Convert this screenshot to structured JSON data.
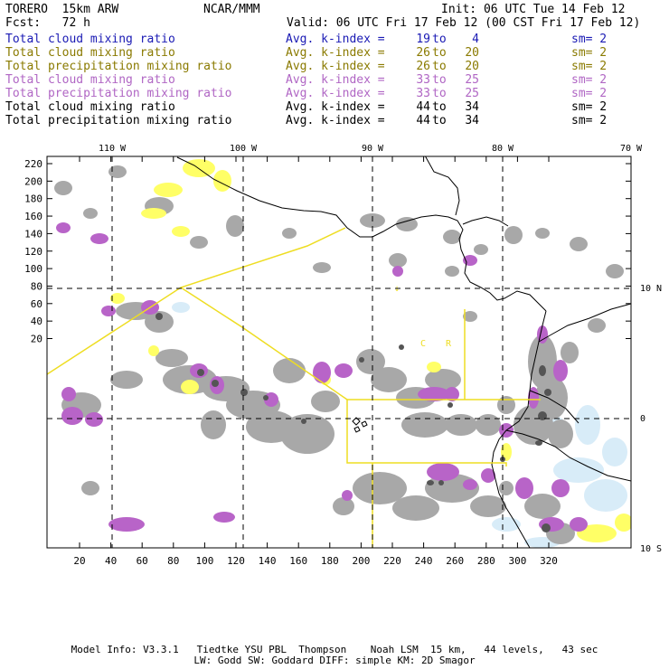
{
  "header": {
    "model": "TORERO  15km ARW",
    "org": "NCAR/MMM",
    "init": "Init: 06 UTC Tue 14 Feb 12",
    "fcst": "Fcst:   72 h",
    "valid": "Valid: 06 UTC Fri 17 Feb 12 (00 CST Fri 17 Feb 12)"
  },
  "legend": [
    {
      "name": "Total cloud mixing ratio",
      "avg": "Avg. k-index =",
      "from": "19",
      "to_word": "to",
      "to": "4",
      "sm": "sm= 2",
      "color": "#1a1ab4"
    },
    {
      "name": "Total cloud mixing ratio",
      "avg": "Avg. k-index =",
      "from": "26",
      "to_word": "to",
      "to": "20",
      "sm": "sm= 2",
      "color": "#8a7a00"
    },
    {
      "name": "Total precipitation mixing ratio",
      "avg": "Avg. k-index =",
      "from": "26",
      "to_word": "to",
      "to": "20",
      "sm": "sm= 2",
      "color": "#8a7a00"
    },
    {
      "name": "Total cloud mixing ratio",
      "avg": "Avg. k-index =",
      "from": "33",
      "to_word": "to",
      "to": "25",
      "sm": "sm= 2",
      "color": "#b066c4"
    },
    {
      "name": "Total precipitation mixing ratio",
      "avg": "Avg. k-index =",
      "from": "33",
      "to_word": "to",
      "to": "25",
      "sm": "sm= 2",
      "color": "#b066c4"
    },
    {
      "name": "Total cloud mixing ratio",
      "avg": "Avg. k-index =",
      "from": "44",
      "to_word": "to",
      "to": "34",
      "sm": "sm= 2",
      "color": "#000000"
    },
    {
      "name": "Total precipitation mixing ratio",
      "avg": "Avg. k-index =",
      "from": "44",
      "to_word": "to",
      "to": "34",
      "sm": "sm= 2",
      "color": "#000000"
    }
  ],
  "map": {
    "lon_labels": [
      "110 W",
      "100 W",
      "90 W",
      "80 W",
      "70 W"
    ],
    "lat_labels": [
      "10 N",
      "0",
      "10 S"
    ],
    "x_ticks": [
      "20",
      "40",
      "60",
      "80",
      "100",
      "120",
      "140",
      "160",
      "180",
      "200",
      "220",
      "240",
      "260",
      "280",
      "300",
      "320"
    ],
    "y_ticks": [
      "220",
      "200",
      "180",
      "160",
      "140",
      "120",
      "100",
      "80",
      "60",
      "40",
      "20"
    ],
    "region_labels": [
      "C",
      "R"
    ],
    "colors": {
      "gray": "#a8a8a8",
      "purple": "#b864c8",
      "yellow": "#ffff66",
      "lightblue": "#d8ecf8",
      "boundary": "#eedd22"
    }
  },
  "footer": {
    "line1": "Model Info: V3.3.1   Tiedtke YSU PBL  Thompson    Noah LSM  15 km,   44 levels,   43 sec",
    "line2": "LW: Godd SW: Goddard DIFF: simple KM: 2D Smagor"
  }
}
